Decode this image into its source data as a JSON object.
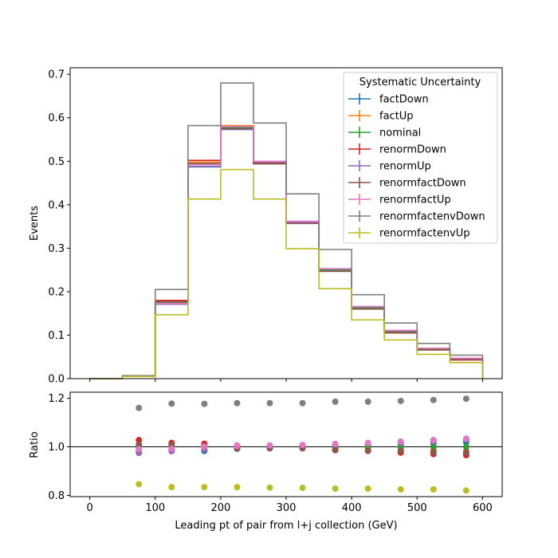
{
  "chart_data": [
    {
      "type": "line",
      "step": "post",
      "ylabel": "Events",
      "xlim": [
        -30,
        630
      ],
      "ylim": [
        0,
        0.715
      ],
      "yticks": [
        0.0,
        0.1,
        0.2,
        0.3,
        0.4,
        0.5,
        0.6,
        0.7
      ],
      "ytick_labels": [
        "0.0",
        "0.1",
        "0.2",
        "0.3",
        "0.4",
        "0.5",
        "0.6",
        "0.7"
      ],
      "grid": false,
      "legend": {
        "title": "Systematic Uncertainty",
        "placement": "top-right"
      },
      "bin_edges": [
        0,
        50,
        100,
        150,
        200,
        250,
        300,
        350,
        400,
        450,
        500,
        550,
        600
      ],
      "series": [
        {
          "name": "factDown",
          "color": "#1f77b4",
          "values": [
            0.0,
            0.006,
            0.172,
            0.487,
            0.573,
            0.497,
            0.359,
            0.251,
            0.163,
            0.109,
            0.069,
            0.046
          ]
        },
        {
          "name": "factUp",
          "color": "#ff7f0e",
          "values": [
            0.0,
            0.006,
            0.177,
            0.498,
            0.582,
            0.497,
            0.358,
            0.249,
            0.162,
            0.107,
            0.067,
            0.044
          ]
        },
        {
          "name": "nominal",
          "color": "#2ca02c",
          "values": [
            0.0,
            0.006,
            0.175,
            0.493,
            0.578,
            0.497,
            0.359,
            0.25,
            0.163,
            0.108,
            0.068,
            0.045
          ]
        },
        {
          "name": "renormDown",
          "color": "#d62728",
          "values": [
            0.0,
            0.006,
            0.18,
            0.502,
            0.58,
            0.495,
            0.358,
            0.247,
            0.16,
            0.105,
            0.066,
            0.043
          ]
        },
        {
          "name": "renormUp",
          "color": "#9467bd",
          "values": [
            0.0,
            0.006,
            0.171,
            0.488,
            0.574,
            0.498,
            0.36,
            0.252,
            0.165,
            0.11,
            0.07,
            0.046
          ]
        },
        {
          "name": "renormfactDown",
          "color": "#8c564b",
          "values": [
            0.0,
            0.006,
            0.177,
            0.495,
            0.575,
            0.494,
            0.357,
            0.247,
            0.16,
            0.106,
            0.066,
            0.044
          ]
        },
        {
          "name": "renormfactUp",
          "color": "#e377c2",
          "values": [
            0.0,
            0.006,
            0.173,
            0.492,
            0.58,
            0.5,
            0.362,
            0.253,
            0.166,
            0.111,
            0.07,
            0.047
          ]
        },
        {
          "name": "renormfactenvDown",
          "color": "#7f7f7f",
          "values": [
            0.0,
            0.007,
            0.205,
            0.582,
            0.68,
            0.588,
            0.425,
            0.297,
            0.193,
            0.128,
            0.081,
            0.054
          ]
        },
        {
          "name": "renormfactenvUp",
          "color": "#bcbd22",
          "values": [
            0.0,
            0.005,
            0.147,
            0.413,
            0.481,
            0.413,
            0.299,
            0.207,
            0.135,
            0.089,
            0.056,
            0.037
          ]
        }
      ]
    },
    {
      "type": "scatter",
      "xlabel": "Leading pt of pair from l+j collection (GeV)",
      "ylabel": "Ratio",
      "xlim": [
        -30,
        630
      ],
      "ylim": [
        0.795,
        1.225
      ],
      "xticks": [
        0,
        100,
        200,
        300,
        400,
        500,
        600
      ],
      "xtick_labels": [
        "0",
        "100",
        "200",
        "300",
        "400",
        "500",
        "600"
      ],
      "yticks": [
        0.8,
        1.0,
        1.2
      ],
      "ytick_labels": [
        "0.8",
        "1.0",
        "1.2"
      ],
      "reference_line": 1.0,
      "x": [
        75,
        125,
        175,
        225,
        275,
        325,
        375,
        425,
        475,
        525,
        575
      ],
      "series": [
        {
          "name": "factDown",
          "color": "#1f77b4",
          "values": [
            0.98,
            0.985,
            0.983,
            0.992,
            1.0,
            1.0,
            1.004,
            1.008,
            1.012,
            1.015,
            1.02
          ]
        },
        {
          "name": "factUp",
          "color": "#ff7f0e",
          "values": [
            1.01,
            1.01,
            1.007,
            1.004,
            1.0,
            0.998,
            0.996,
            0.994,
            0.99,
            0.986,
            0.982
          ]
        },
        {
          "name": "nominal",
          "color": "#2ca02c",
          "values": [
            1.0,
            1.0,
            1.0,
            1.0,
            1.0,
            1.0,
            1.0,
            1.0,
            1.0,
            1.0,
            1.0
          ]
        },
        {
          "name": "renormDown",
          "color": "#d62728",
          "values": [
            1.028,
            1.016,
            1.013,
            1.005,
            0.997,
            0.996,
            0.987,
            0.983,
            0.976,
            0.97,
            0.966
          ]
        },
        {
          "name": "renormUp",
          "color": "#9467bd",
          "values": [
            0.975,
            0.982,
            0.99,
            0.993,
            1.003,
            1.003,
            1.008,
            1.014,
            1.017,
            1.024,
            1.031
          ]
        },
        {
          "name": "renormfactDown",
          "color": "#8c564b",
          "values": [
            1.008,
            1.008,
            1.002,
            0.994,
            0.994,
            0.994,
            0.986,
            0.984,
            0.982,
            0.978,
            0.977
          ]
        },
        {
          "name": "renormfactUp",
          "color": "#e377c2",
          "values": [
            0.99,
            0.992,
            1.001,
            1.004,
            1.006,
            1.008,
            1.012,
            1.016,
            1.022,
            1.028,
            1.034
          ]
        },
        {
          "name": "renormfactenvDown",
          "color": "#7f7f7f",
          "values": [
            1.16,
            1.178,
            1.177,
            1.18,
            1.18,
            1.18,
            1.186,
            1.186,
            1.189,
            1.193,
            1.198
          ]
        },
        {
          "name": "renormfactenvUp",
          "color": "#bcbd22",
          "values": [
            0.846,
            0.834,
            0.834,
            0.834,
            0.832,
            0.831,
            0.828,
            0.828,
            0.825,
            0.825,
            0.82
          ]
        }
      ]
    }
  ]
}
